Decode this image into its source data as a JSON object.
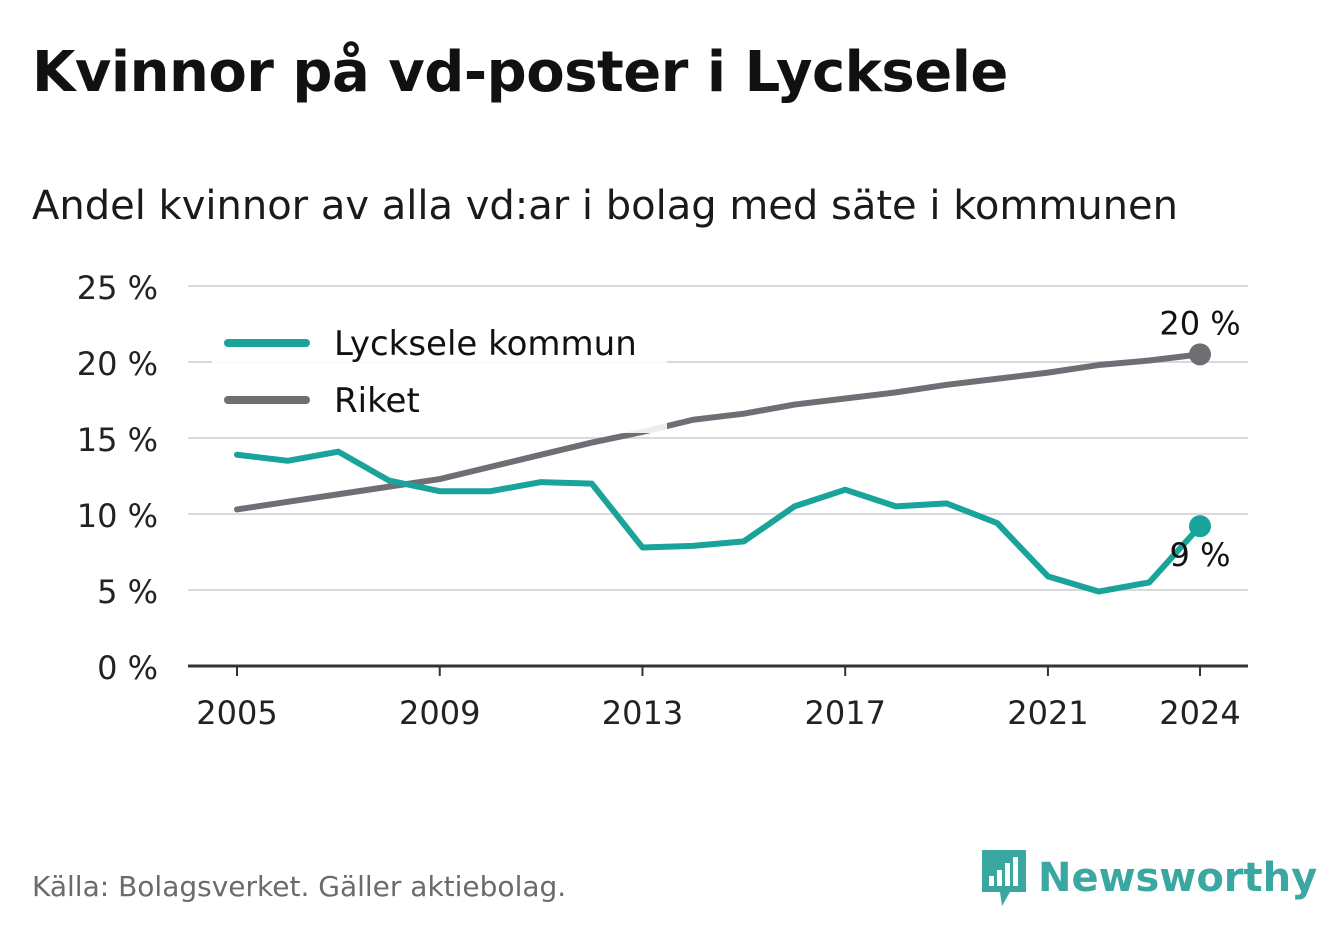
{
  "title": "Kvinnor på vd-poster i Lycksele",
  "subtitle": "Andel kvinnor av alla vd:ar i bolag med säte i kommunen",
  "source": "Källa: Bolagsverket. Gäller aktiebolag.",
  "brand": "Newsworthy",
  "chart_data": {
    "type": "line",
    "x": [
      2005,
      2006,
      2007,
      2008,
      2009,
      2010,
      2011,
      2012,
      2013,
      2014,
      2015,
      2016,
      2017,
      2018,
      2019,
      2020,
      2021,
      2022,
      2023,
      2024
    ],
    "x_ticks": [
      2005,
      2009,
      2013,
      2017,
      2021,
      2024
    ],
    "y_ticks": [
      0,
      5,
      10,
      15,
      20,
      25
    ],
    "y_tick_labels": [
      "0 %",
      "5 %",
      "10 %",
      "15 %",
      "20 %",
      "25 %"
    ],
    "ylim": [
      0,
      25
    ],
    "grid": true,
    "legend_position": "top-left",
    "series": [
      {
        "name": "Lycksele kommun",
        "color": "#1aa39a",
        "values": [
          13.9,
          13.5,
          14.1,
          12.2,
          11.5,
          11.5,
          12.1,
          12.0,
          7.8,
          7.9,
          8.2,
          10.5,
          11.6,
          10.5,
          10.7,
          9.4,
          5.9,
          4.9,
          5.5,
          9.2
        ],
        "end_label": "9 %"
      },
      {
        "name": "Riket",
        "color": "#6f6e75",
        "values": [
          10.3,
          10.8,
          11.3,
          11.8,
          12.3,
          13.1,
          13.9,
          14.7,
          15.4,
          16.2,
          16.6,
          17.2,
          17.6,
          18.0,
          18.5,
          18.9,
          19.3,
          19.8,
          20.1,
          20.5
        ],
        "end_label": "20 %"
      }
    ]
  }
}
